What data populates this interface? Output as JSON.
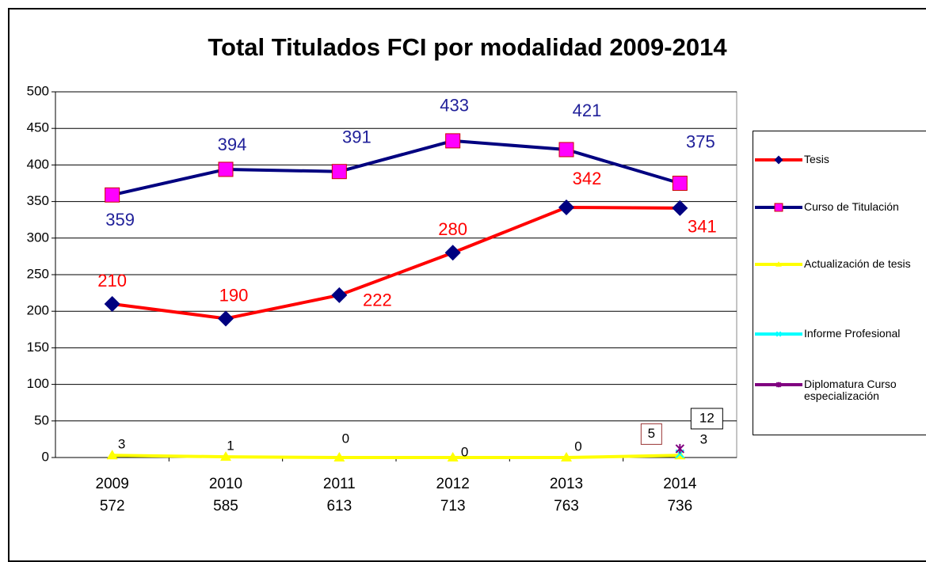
{
  "chart_data": {
    "type": "line",
    "title": "Total Titulados FCI por modalidad 2009-2014",
    "categories": [
      "2009",
      "2010",
      "2011",
      "2012",
      "2013",
      "2014"
    ],
    "totals": [
      572,
      585,
      613,
      713,
      763,
      736
    ],
    "series": [
      {
        "name": "Tesis",
        "color": "#ff0000",
        "marker": "diamond",
        "marker_color": "#000080",
        "label_color": "#ff0000",
        "values": [
          210,
          190,
          222,
          280,
          342,
          341
        ]
      },
      {
        "name": "Curso de Titulación",
        "color": "#000080",
        "marker": "square",
        "marker_color": "#ff00ff",
        "label_color": "#1f1f99",
        "values": [
          359,
          394,
          391,
          433,
          421,
          375
        ]
      },
      {
        "name": "Actualización de tesis",
        "color": "#ffff00",
        "marker": "triangle",
        "marker_color": "#ffff00",
        "label_color": "#000000",
        "values": [
          3,
          1,
          0,
          0,
          0,
          3
        ]
      },
      {
        "name": "Informe Profesional",
        "color": "#00ffff",
        "marker": "x",
        "marker_color": "#00ffff",
        "label_color": "#000000",
        "label_box": "#993333",
        "values": [
          null,
          null,
          null,
          null,
          null,
          5
        ]
      },
      {
        "name": "Diplomatura Curso especialización",
        "color": "#800080",
        "marker": "star",
        "marker_color": "#800080",
        "label_color": "#000000",
        "label_box": "#000000",
        "values": [
          null,
          null,
          null,
          null,
          null,
          12
        ]
      }
    ],
    "ylim": [
      0,
      500
    ],
    "yticks": [
      0,
      50,
      100,
      150,
      200,
      250,
      300,
      350,
      400,
      450,
      500
    ],
    "grid": true,
    "legend": "right"
  }
}
